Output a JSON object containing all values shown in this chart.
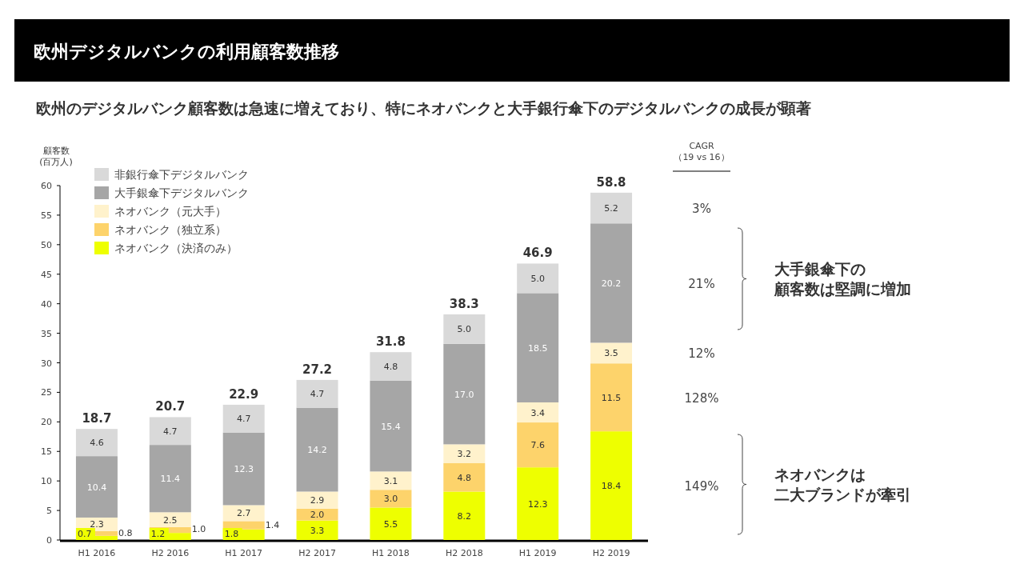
{
  "chart_data": {
    "type": "bar",
    "stacked": true,
    "title": "欧州デジタルバンクの利用顧客数推移",
    "subtitle": "欧州のデジタルバンク顧客数は急速に増えており、特にネオバンクと大手銀行傘下のデジタルバンクの成長が顕著",
    "ylabel": "顧客数\n(百万人)",
    "categories": [
      "H1 2016",
      "H2 2016",
      "H1 2017",
      "H2 2017",
      "H1 2018",
      "H2 2018",
      "H1 2019",
      "H2 2019"
    ],
    "series": [
      {
        "name": "ネオバンク（決済のみ）",
        "color": "#eeff00",
        "values": [
          0.7,
          1.2,
          1.8,
          3.3,
          5.5,
          8.2,
          12.3,
          18.4
        ],
        "value_labels": [
          "0.7",
          "1.2",
          "1.8",
          "3.3",
          "5.5",
          "8.2",
          "12.3",
          "18.4"
        ]
      },
      {
        "name": "ネオバンク（独立系）",
        "color": "#fdd36b",
        "values": [
          0.8,
          1.0,
          1.4,
          2.0,
          3.0,
          4.8,
          7.6,
          11.5
        ],
        "value_labels": [
          "0.8",
          "1.0",
          "1.4",
          "2.0",
          "3.0",
          "4.8",
          "7.6",
          "11.5"
        ]
      },
      {
        "name": "ネオバンク（元大手）",
        "color": "#fff2cc",
        "values": [
          2.3,
          2.5,
          2.7,
          2.9,
          3.1,
          3.2,
          3.4,
          3.5
        ],
        "value_labels": [
          "2.3",
          "2.5",
          "2.7",
          "2.9",
          "3.1",
          "3.2",
          "3.4",
          "3.5"
        ]
      },
      {
        "name": "大手銀傘下デジタルバンク",
        "color": "#a6a6a6",
        "values": [
          10.4,
          11.4,
          12.3,
          14.2,
          15.4,
          17.0,
          18.5,
          20.2
        ],
        "value_labels": [
          "10.4",
          "11.4",
          "12.3",
          "14.2",
          "15.4",
          "17.0",
          "18.5",
          "20.2"
        ]
      },
      {
        "name": "非銀行傘下デジタルバンク",
        "color": "#d9d9d9",
        "values": [
          4.6,
          4.7,
          4.7,
          4.7,
          4.8,
          5.0,
          5.0,
          5.2
        ],
        "value_labels": [
          "4.6",
          "4.7",
          "4.7",
          "4.7",
          "4.8",
          "5.0",
          "5.0",
          "5.2"
        ]
      }
    ],
    "totals": [
      "18.7",
      "20.7",
      "22.9",
      "27.2",
      "31.8",
      "38.3",
      "46.9",
      "58.8"
    ],
    "ylim": [
      0,
      60
    ],
    "yticks": [
      0,
      5,
      10,
      15,
      20,
      25,
      30,
      35,
      40,
      45,
      50,
      55,
      60
    ],
    "grid": false,
    "legend": "top left",
    "annotations": [
      "CAGR\n（19 vs 16）",
      "3%",
      "21%",
      "12%",
      "128%",
      "149%",
      "大手銀傘下の",
      "顧客数は堅調に増加",
      "ネオバンクは",
      "二大ブランドが牽引"
    ]
  }
}
